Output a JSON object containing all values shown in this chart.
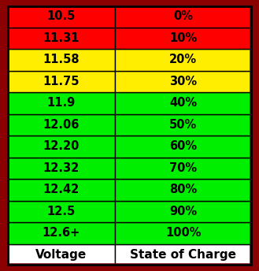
{
  "header": [
    "Voltage",
    "State of Charge"
  ],
  "rows": [
    [
      "12.6+",
      "100%",
      "#00ee00"
    ],
    [
      "12.5",
      "90%",
      "#00ee00"
    ],
    [
      "12.42",
      "80%",
      "#00ee00"
    ],
    [
      "12.32",
      "70%",
      "#00ee00"
    ],
    [
      "12.20",
      "60%",
      "#00ee00"
    ],
    [
      "12.06",
      "50%",
      "#00ee00"
    ],
    [
      "11.9",
      "40%",
      "#00ee00"
    ],
    [
      "11.75",
      "30%",
      "#ffee00"
    ],
    [
      "11.58",
      "20%",
      "#ffee00"
    ],
    [
      "11.31",
      "10%",
      "#ff0000"
    ],
    [
      "10.5",
      "0%",
      "#ff0000"
    ]
  ],
  "header_bg": "#ffffff",
  "header_text_color": "#000000",
  "border_outer_color": "#8b0000",
  "border_inner_color": "#000000",
  "text_color": "#000000",
  "font_size": 10.5,
  "header_font_size": 11,
  "col_split": 0.44
}
